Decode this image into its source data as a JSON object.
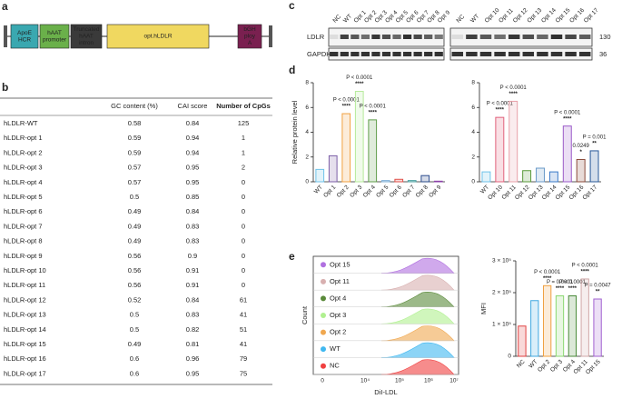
{
  "panel_labels": [
    "a",
    "b",
    "c",
    "d",
    "e"
  ],
  "construct": {
    "elements": [
      [
        "ApoE",
        "HCR"
      ],
      [
        "hAAT",
        "promoter"
      ],
      [
        "Truncated",
        "hAAT",
        "intron"
      ],
      [
        "opt.hLDLR"
      ],
      [
        "bGH",
        "ploy",
        "A"
      ]
    ]
  },
  "table": {
    "header": [
      "GC content (%)",
      "CAI score",
      "Number of CpGs"
    ],
    "rows": [
      [
        "hLDLR-WT",
        "0.58",
        "0.84",
        "125"
      ],
      [
        "hLDLR-opt 1",
        "0.59",
        "0.94",
        "1"
      ],
      [
        "hLDLR-opt 2",
        "0.59",
        "0.94",
        "1"
      ],
      [
        "hLDLR-opt 3",
        "0.57",
        "0.95",
        "2"
      ],
      [
        "hLDLR-opt 4",
        "0.57",
        "0.95",
        "0"
      ],
      [
        "hLDLR-opt 5",
        "0.5",
        "0.85",
        "0"
      ],
      [
        "hLDLR-opt 6",
        "0.49",
        "0.84",
        "0"
      ],
      [
        "hLDLR-opt 7",
        "0.49",
        "0.83",
        "0"
      ],
      [
        "hLDLR-opt 8",
        "0.49",
        "0.83",
        "0"
      ],
      [
        "hLDLR-opt 9",
        "0.56",
        "0.9",
        "0"
      ],
      [
        "hLDLR-opt 10",
        "0.56",
        "0.91",
        "0"
      ],
      [
        "hLDLR-opt 11",
        "0.56",
        "0.91",
        "0"
      ],
      [
        "hLDLR-opt 12",
        "0.52",
        "0.84",
        "61"
      ],
      [
        "hLDLR-opt 13",
        "0.5",
        "0.83",
        "41"
      ],
      [
        "hLDLR-opt 14",
        "0.5",
        "0.82",
        "51"
      ],
      [
        "hLDLR-opt 15",
        "0.49",
        "0.81",
        "41"
      ],
      [
        "hLDLR-opt 16",
        "0.6",
        "0.96",
        "79"
      ],
      [
        "hLDLR-opt 17",
        "0.6",
        "0.95",
        "75"
      ]
    ]
  },
  "blot": {
    "lanes_left": [
      "NC",
      "WT",
      "Opt 1",
      "Opt 2",
      "Opt 3",
      "Opt 4",
      "Opt 5",
      "Opt 6",
      "Opt 7",
      "Opt 8",
      "Opt 9"
    ],
    "lanes_right": [
      "NC",
      "WT",
      "Opt 10",
      "Opt 11",
      "Opt 12",
      "Opt 13",
      "Opt 14",
      "Opt 15",
      "Opt 16",
      "Opt 17"
    ],
    "rows": [
      "LDLR",
      "GAPDH"
    ],
    "markers": [
      "130",
      "36"
    ]
  },
  "flow": {
    "legend": [
      "Opt 15",
      "Opt 11",
      "Opt 4",
      "Opt 3",
      "Opt 2",
      "WT",
      "NC"
    ],
    "colors": [
      "#b070e0",
      "#d8b0b0",
      "#5a8a3a",
      "#b0f090",
      "#f0a850",
      "#40b8f0",
      "#f04040"
    ],
    "x_label": "DiI-LDL",
    "y_label": "Count",
    "xticks": [
      "0",
      "10⁴",
      "10⁵",
      "10⁶",
      "10⁷"
    ]
  },
  "chart_data": [
    {
      "type": "bar",
      "y_label": "Relative protein level",
      "categories": [
        "WT",
        "Opt 1",
        "Opt 2",
        "Opt 3",
        "Opt 4",
        "Opt 5",
        "Opt 6",
        "Opt 7",
        "Opt 8",
        "Opt 9"
      ],
      "values": [
        1,
        2.1,
        5.5,
        7.3,
        5,
        0.1,
        0.2,
        0.1,
        0.5,
        0.05
      ],
      "colors": [
        "#6fc2e8",
        "#7b5ea7",
        "#f0a040",
        "#b5ea9a",
        "#5f9d4a",
        "#7fb0d8",
        "#e0504a",
        "#4aa0a0",
        "#2b4c8c",
        "#8a3fa8"
      ],
      "annotations": [
        null,
        null,
        {
          "p": "P < 0.0001",
          "stars": "****"
        },
        {
          "p": "P < 0.0001",
          "stars": "****"
        },
        {
          "p": "P < 0.0001",
          "stars": "****"
        },
        null,
        null,
        null,
        null,
        null
      ],
      "ylim": [
        0,
        8
      ],
      "yticks": [
        0,
        2,
        4,
        6,
        8
      ]
    },
    {
      "type": "bar",
      "categories": [
        "WT",
        "Opt 10",
        "Opt 11",
        "Opt 12",
        "Opt 13",
        "Opt 14",
        "Opt 15",
        "Opt 16",
        "Opt 17"
      ],
      "values": [
        0.8,
        5.2,
        6.5,
        0.9,
        1.1,
        0.8,
        4.5,
        1.8,
        2.5
      ],
      "colors": [
        "#6fc2e8",
        "#e0607a",
        "#e8a0a8",
        "#5a9a3a",
        "#6a9ac8",
        "#3a7ac8",
        "#9a5ac8",
        "#8a4a3a",
        "#2a5a9a"
      ],
      "annotations": [
        null,
        {
          "p": "P < 0.0001",
          "stars": "****"
        },
        {
          "p": "P < 0.0001",
          "stars": "****"
        },
        null,
        null,
        null,
        {
          "p": "P < 0.0001",
          "stars": "****"
        },
        {
          "p": "0.0249",
          "stars": "*"
        },
        {
          "p": "P = 0.001",
          "stars": "**"
        }
      ],
      "ylim": [
        0,
        8
      ],
      "yticks": [
        0,
        2,
        4,
        6,
        8
      ]
    },
    {
      "type": "bar",
      "y_label": "MFI",
      "categories": [
        "NC",
        "WT",
        "Opt 2",
        "Opt 3",
        "Opt 4",
        "Opt 11",
        "Opt 15"
      ],
      "values": [
        95000,
        175000,
        222000,
        190000,
        190000,
        243000,
        180000
      ],
      "colors": [
        "#e04040",
        "#40a8e0",
        "#f0a040",
        "#8ad870",
        "#4a8a3a",
        "#d0a8a8",
        "#a060d0"
      ],
      "annotations": [
        null,
        null,
        {
          "p": "P < 0.0001",
          "stars": "****"
        },
        {
          "p": "P = 0.0001",
          "stars": "****"
        },
        {
          "p": "P < 0.0001",
          "stars": "****"
        },
        {
          "p": "P < 0.0001",
          "stars": "****"
        },
        {
          "p": "P = 0.0047",
          "stars": "**"
        }
      ],
      "ylim": [
        0,
        300000
      ],
      "yticks": [
        0,
        {
          "value": 100000,
          "label": "1 × 10⁵"
        },
        {
          "value": 200000,
          "label": "2 × 10⁵"
        },
        {
          "value": 300000,
          "label": "3 × 10⁵"
        }
      ]
    }
  ]
}
